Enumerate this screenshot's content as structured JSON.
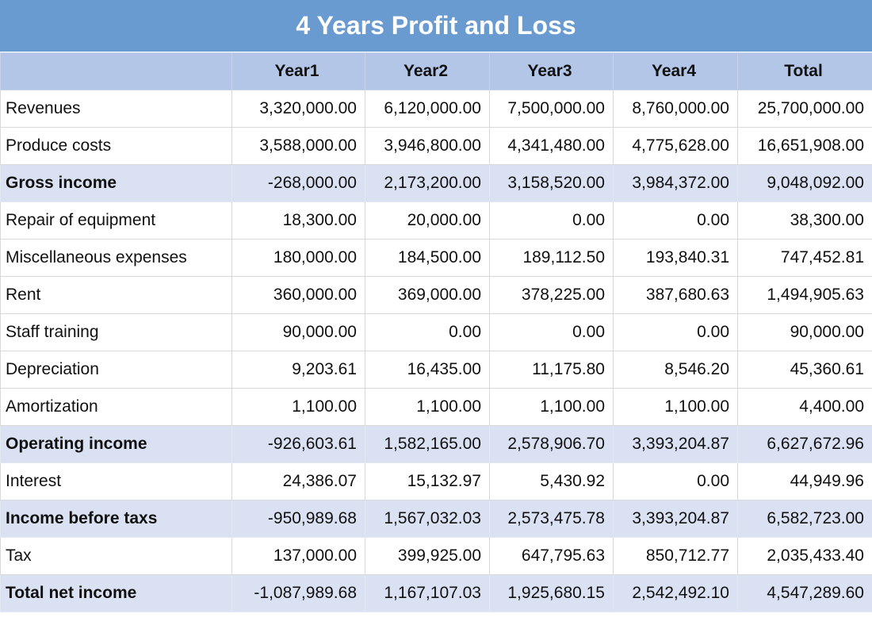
{
  "title": "4 Years Profit and Loss",
  "headers": [
    "",
    "Year1",
    "Year2",
    "Year3",
    "Year4",
    "Total"
  ],
  "rows": [
    {
      "label": "Revenues",
      "bold": false,
      "values": [
        "3,320,000.00",
        "6,120,000.00",
        "7,500,000.00",
        "8,760,000.00",
        "25,700,000.00"
      ]
    },
    {
      "label": "Produce costs",
      "bold": false,
      "values": [
        "3,588,000.00",
        "3,946,800.00",
        "4,341,480.00",
        "4,775,628.00",
        "16,651,908.00"
      ]
    },
    {
      "label": "Gross income",
      "bold": true,
      "values": [
        "-268,000.00",
        "2,173,200.00",
        "3,158,520.00",
        "3,984,372.00",
        "9,048,092.00"
      ]
    },
    {
      "label": "Repair of equipment",
      "bold": false,
      "values": [
        "18,300.00",
        "20,000.00",
        "0.00",
        "0.00",
        "38,300.00"
      ]
    },
    {
      "label": "Miscellaneous expenses",
      "bold": false,
      "values": [
        "180,000.00",
        "184,500.00",
        "189,112.50",
        "193,840.31",
        "747,452.81"
      ]
    },
    {
      "label": "Rent",
      "bold": false,
      "values": [
        "360,000.00",
        "369,000.00",
        "378,225.00",
        "387,680.63",
        "1,494,905.63"
      ]
    },
    {
      "label": "Staff training",
      "bold": false,
      "values": [
        "90,000.00",
        "0.00",
        "0.00",
        "0.00",
        "90,000.00"
      ]
    },
    {
      "label": "Depreciation",
      "bold": false,
      "values": [
        "9,203.61",
        "16,435.00",
        "11,175.80",
        "8,546.20",
        "45,360.61"
      ]
    },
    {
      "label": "Amortization",
      "bold": false,
      "values": [
        "1,100.00",
        "1,100.00",
        "1,100.00",
        "1,100.00",
        "4,400.00"
      ]
    },
    {
      "label": "Operating income",
      "bold": true,
      "values": [
        "-926,603.61",
        "1,582,165.00",
        "2,578,906.70",
        "3,393,204.87",
        "6,627,672.96"
      ]
    },
    {
      "label": "Interest",
      "bold": false,
      "values": [
        "24,386.07",
        "15,132.97",
        "5,430.92",
        "0.00",
        "44,949.96"
      ]
    },
    {
      "label": "Income before taxs",
      "bold": true,
      "values": [
        "-950,989.68",
        "1,567,032.03",
        "2,573,475.78",
        "3,393,204.87",
        "6,582,723.00"
      ]
    },
    {
      "label": "Tax",
      "bold": false,
      "values": [
        "137,000.00",
        "399,925.00",
        "647,795.63",
        "850,712.77",
        "2,035,433.40"
      ]
    },
    {
      "label": "Total net income",
      "bold": true,
      "values": [
        "-1,087,989.68",
        "1,167,107.03",
        "1,925,680.15",
        "2,542,492.10",
        "4,547,289.60"
      ]
    }
  ],
  "colors": {
    "title_bg": "#6a9bd0",
    "header_bg": "#b4c6e7",
    "highlight_row_bg": "#d9e1f2",
    "grid": "#d9d9d9"
  }
}
